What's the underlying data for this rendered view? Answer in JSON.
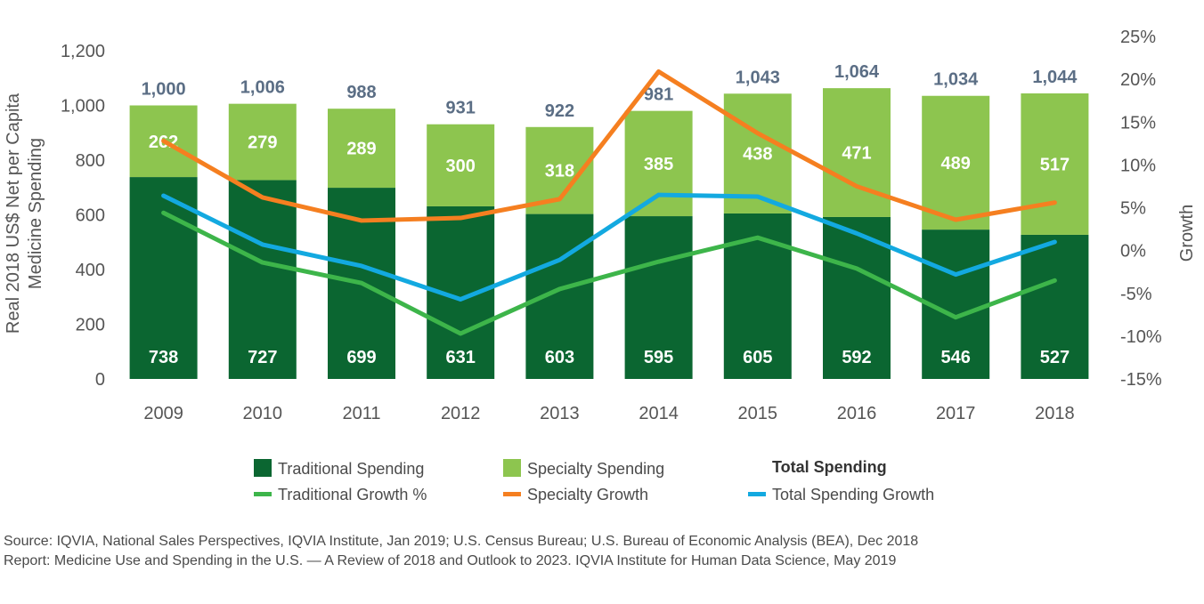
{
  "chart_data": {
    "type": "bar",
    "categories": [
      "2009",
      "2010",
      "2011",
      "2012",
      "2013",
      "2014",
      "2015",
      "2016",
      "2017",
      "2018"
    ],
    "series": [
      {
        "name": "Traditional  Spending",
        "kind": "bar",
        "color": "#0b6631",
        "values": [
          738,
          727,
          699,
          631,
          603,
          595,
          605,
          592,
          546,
          527
        ]
      },
      {
        "name": "Specialty Spending",
        "kind": "bar",
        "color": "#8dc54f",
        "values": [
          262,
          279,
          289,
          300,
          318,
          385,
          438,
          471,
          489,
          517
        ]
      },
      {
        "name": "Traditional Growth %",
        "kind": "line",
        "axis": "right",
        "color": "#3db54a",
        "values": [
          4.4,
          -1.4,
          -3.8,
          -9.7,
          -4.5,
          -1.3,
          1.5,
          -2.1,
          -7.8,
          -3.5
        ]
      },
      {
        "name": "Specialty Growth",
        "kind": "line",
        "axis": "right",
        "color": "#f57f20",
        "values": [
          12.8,
          6.2,
          3.5,
          3.8,
          6.0,
          20.9,
          13.7,
          7.5,
          3.6,
          5.6
        ]
      },
      {
        "name": "Total Spending Growth",
        "kind": "line",
        "axis": "right",
        "color": "#13a9e0",
        "values": [
          6.4,
          0.7,
          -1.8,
          -5.7,
          -1.1,
          6.5,
          6.3,
          2.0,
          -2.8,
          1.0
        ]
      }
    ],
    "totals": {
      "name": "Total Spending",
      "values": [
        "1,000",
        "1,006",
        "988",
        "931",
        "922",
        "981",
        "1,043",
        "1,064",
        "1,034",
        "1,044"
      ]
    },
    "traditional_labels": [
      "738",
      "727",
      "699",
      "631",
      "603",
      "595",
      "605",
      "592",
      "546",
      "527"
    ],
    "specialty_labels": [
      "262",
      "279",
      "289",
      "300",
      "318",
      "385",
      "438",
      "471",
      "489",
      "517"
    ],
    "ylabel": "Real 2018 US$ Net per Capita Medicine Spending",
    "ylabel_lines": [
      "Real 2018 US$ Net per Capita",
      "Medicine Spending"
    ],
    "y2label": "Growth",
    "ylim": [
      0,
      1200
    ],
    "y2lim": [
      -15,
      25
    ],
    "yticks": [
      0,
      200,
      400,
      600,
      800,
      1000,
      1200
    ],
    "ytick_labels": [
      "0",
      "200",
      "400",
      "600",
      "800",
      "1,000",
      "1,200"
    ],
    "y2ticks": [
      -15,
      -10,
      -5,
      0,
      5,
      10,
      15,
      20,
      25
    ],
    "y2tick_labels": [
      "-15%",
      "-10%",
      "-5%",
      "0%",
      "5%",
      "10%",
      "15%",
      "20%",
      "25%"
    ],
    "legend_position": "bottom",
    "grid": false
  },
  "source": {
    "line1": "Source: IQVIA, National Sales Perspectives, IQVIA Institute, Jan 2019; U.S. Census Bureau; U.S. Bureau of Economic Analysis (BEA), Dec 2018",
    "line2": "Report: Medicine Use and Spending in the U.S. — A Review of 2018 and Outlook to 2023. IQVIA Institute for Human Data Science, May 2019"
  },
  "colors": {
    "axis_text": "#555555",
    "total_label": "#5b6e85"
  }
}
